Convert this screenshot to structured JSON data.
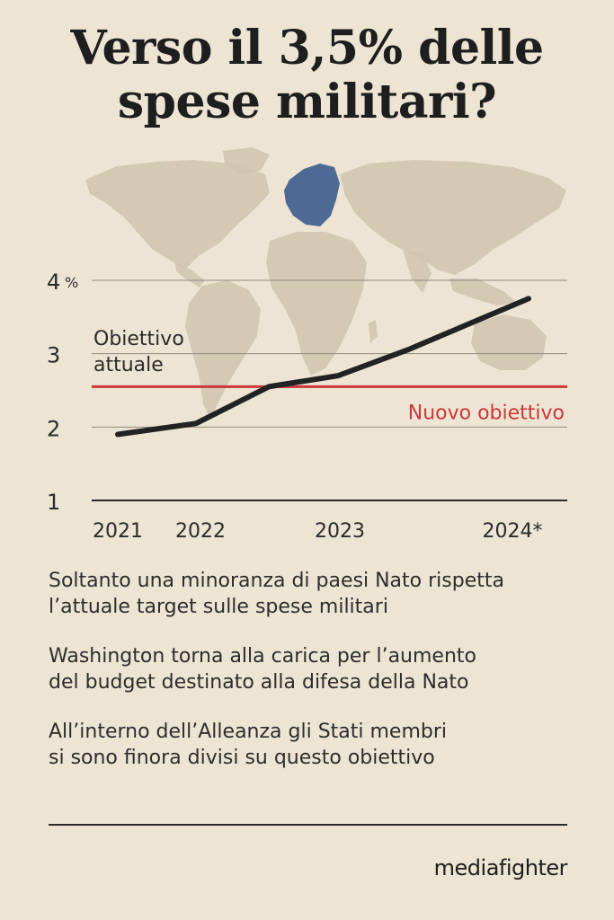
{
  "header": {
    "title_line1": "Verso il 3,5% delle",
    "title_line2": "spese militari?"
  },
  "colors": {
    "background": "#ede4d3",
    "map_land": "#cfc4ad",
    "europe_highlight": "#46628f",
    "line": "#222222",
    "target_line": "#c9393b",
    "grid": "#8f8a80"
  },
  "chart_data": {
    "type": "line",
    "title": "Verso il 3,5% delle spese militari?",
    "x": [
      "2021",
      "2022",
      "",
      "2023",
      "",
      "2024*"
    ],
    "x_ticks": [
      "2021",
      "2022",
      "2023",
      "2024*"
    ],
    "y_ticks": [
      "1",
      "2",
      "3",
      "4"
    ],
    "y_unit": "%",
    "ylim": [
      1,
      4
    ],
    "series": [
      {
        "values": [
          1.9,
          2.05,
          2.55,
          2.7,
          3.05,
          3.75
        ]
      }
    ],
    "reference_lines": [
      {
        "value": 2.55,
        "label": "Nuovo obiettivo",
        "color": "#c9393b"
      }
    ],
    "annotations": [
      {
        "text_line1": "Obiettivo",
        "text_line2": "attuale"
      }
    ],
    "grid": true,
    "background_map": "world-map"
  },
  "notes": [
    "Soltanto una minoranza di paesi Nato rispetta\nl’attuale target sulle spese militari",
    "Washington torna alla carica per l’aumento\ndel budget destinato alla difesa della Nato",
    "All’interno dell’Alleanza gli Stati membri\nsi sono finora divisi su questo obiettivo"
  ],
  "brand": "mediafighter"
}
